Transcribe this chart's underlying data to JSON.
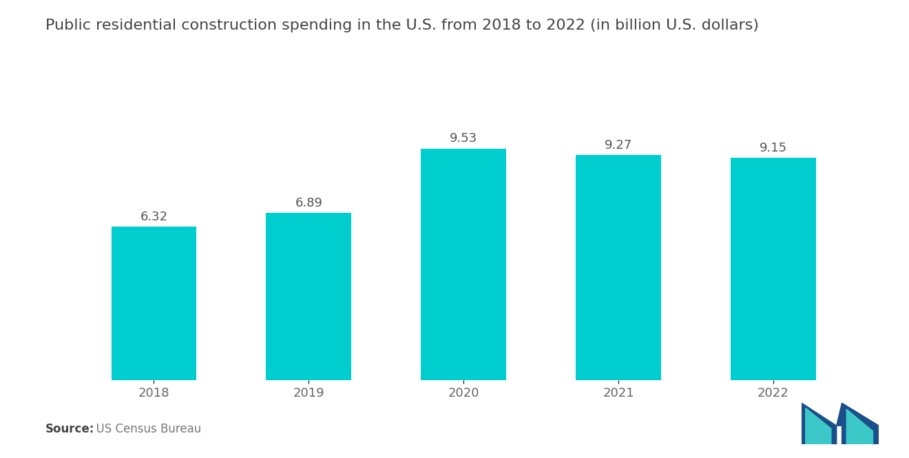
{
  "title": "Public residential construction spending in the U.S. from 2018 to 2022 (in billion U.S. dollars)",
  "categories": [
    "2018",
    "2019",
    "2020",
    "2021",
    "2022"
  ],
  "values": [
    6.32,
    6.89,
    9.53,
    9.27,
    9.15
  ],
  "bar_color": "#00CDCD",
  "background_color": "#ffffff",
  "title_fontsize": 16,
  "tick_fontsize": 13,
  "value_fontsize": 13,
  "source_bold": "Source:",
  "source_normal": "  US Census Bureau",
  "source_fontsize": 12,
  "ylim": [
    0,
    11.5
  ],
  "bar_width": 0.55
}
